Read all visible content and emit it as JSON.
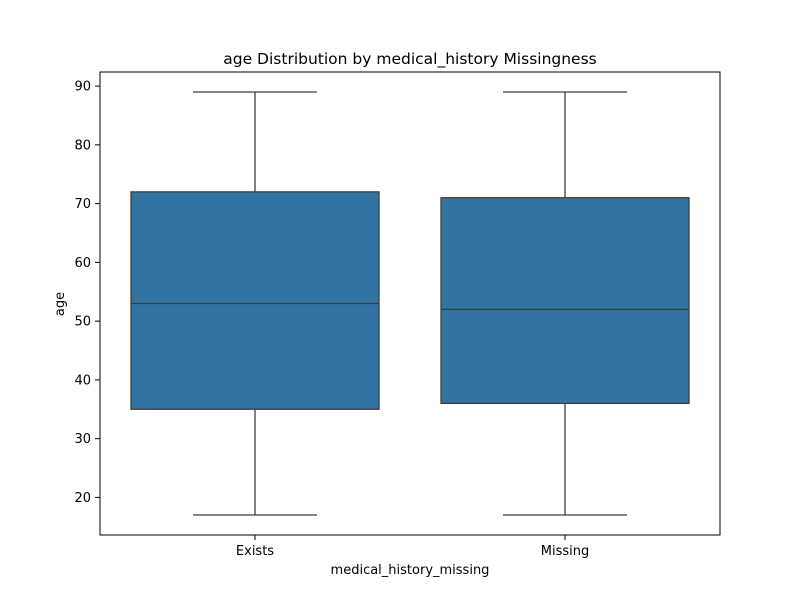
{
  "chart_data": {
    "type": "box",
    "title": "age Distribution by medical_history Missingness",
    "xlabel": "medical_history_missing",
    "ylabel": "age",
    "categories": [
      "Exists",
      "Missing"
    ],
    "boxes": [
      {
        "category": "Exists",
        "whisker_low": 17,
        "q1": 35,
        "median": 53,
        "q3": 72,
        "whisker_high": 89
      },
      {
        "category": "Missing",
        "whisker_low": 17,
        "q1": 36,
        "median": 52,
        "q3": 71,
        "whisker_high": 89
      }
    ],
    "ylim": [
      13.6,
      92.4
    ],
    "yticks": [
      20,
      30,
      40,
      50,
      60,
      70,
      80,
      90
    ],
    "grid": false,
    "colors": {
      "box_fill": "#3274a1",
      "line": "#3d3d3d"
    }
  }
}
